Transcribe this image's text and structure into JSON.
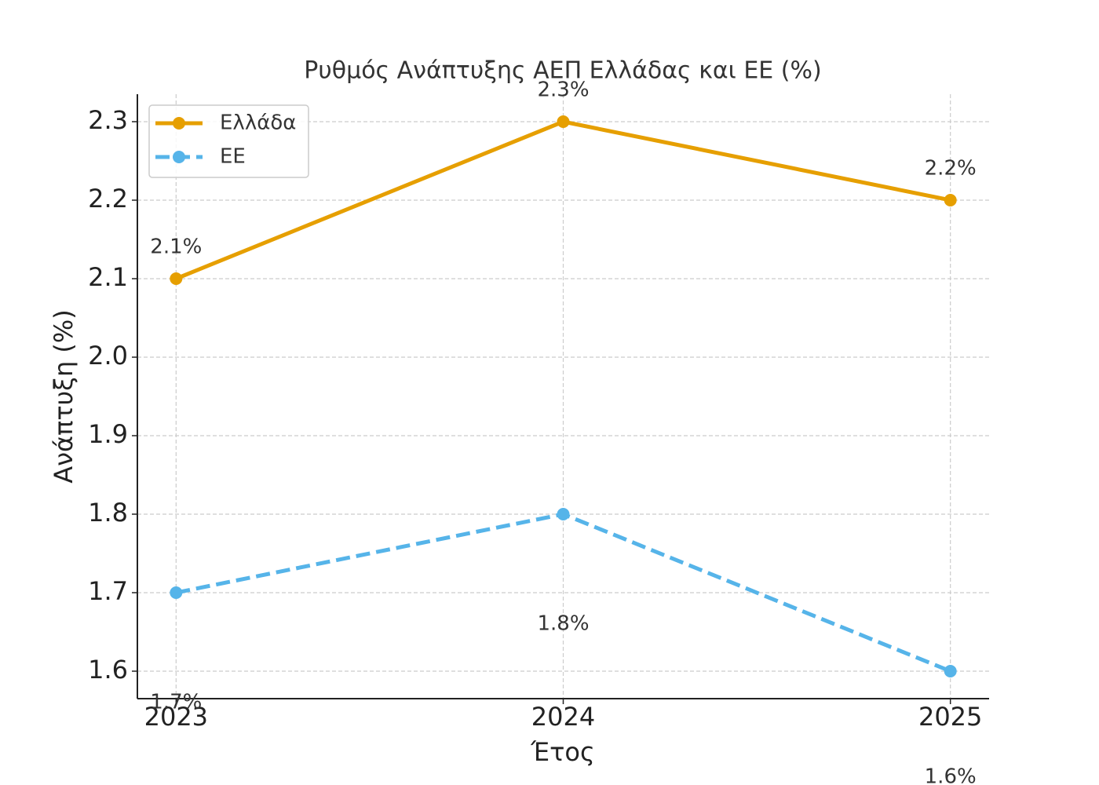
{
  "chart_data": {
    "type": "line",
    "title": "Ρυθμός Ανάπτυξης ΑΕΠ Ελλάδας και ΕΕ (%)",
    "x_label": "Έτος",
    "y_label": "Ανάπτυξη (%)",
    "x": [
      2023,
      2024,
      2025
    ],
    "xlim": [
      2022.9,
      2025.1
    ],
    "xticks": [
      2023,
      2024,
      2025
    ],
    "ylim": [
      1.565,
      2.335
    ],
    "yticks": [
      {
        "value": 1.6,
        "label": "1.6"
      },
      {
        "value": 1.7,
        "label": "1.7"
      },
      {
        "value": 1.8,
        "label": "1.8"
      },
      {
        "value": 1.9,
        "label": "1.9"
      },
      {
        "value": 2.0,
        "label": "2.0"
      },
      {
        "value": 2.1,
        "label": "2.1"
      },
      {
        "value": 2.2,
        "label": "2.2"
      },
      {
        "value": 2.3,
        "label": "2.3"
      }
    ],
    "grid": true,
    "legend": "upper-left",
    "series": [
      {
        "name": "Ελλάδα",
        "color": "#E69F00",
        "dash": false,
        "values": [
          2.1,
          2.3,
          2.2
        ],
        "value_labels": [
          "2.1%",
          "2.3%",
          "2.2%"
        ],
        "label_side": "above"
      },
      {
        "name": "ΕΕ",
        "color": "#56B4E9",
        "dash": true,
        "values": [
          1.7,
          1.8,
          1.6
        ],
        "value_labels": [
          "1.7%",
          "1.8%",
          "1.6%"
        ],
        "label_side": "below"
      }
    ]
  }
}
